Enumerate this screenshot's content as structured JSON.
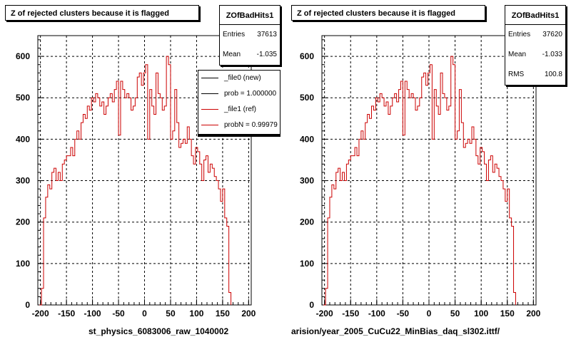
{
  "panels": [
    {
      "title": "Z of rejected clusters  because it is flagged",
      "stats": {
        "name": "ZOfBadHits1",
        "rows": [
          {
            "k": "Entries",
            "v": "37613"
          },
          {
            "k": "Mean",
            "v": "-1.035"
          }
        ]
      },
      "legend": [
        {
          "label": "_file0 (new)",
          "color": "#000000"
        },
        {
          "label": "prob = 1.000000",
          "color": "#000000"
        },
        {
          "label": "_file1 (ref)",
          "color": "#cc0000"
        },
        {
          "label": "probN = 0.99979",
          "color": "#cc0000"
        }
      ],
      "xtitle": "st_physics_6083006_raw_1040002"
    },
    {
      "title": "Z of rejected clusters  because it is flagged",
      "stats": {
        "name": "ZOfBadHits1",
        "rows": [
          {
            "k": "Entries",
            "v": "37620"
          },
          {
            "k": "Mean",
            "v": "-1.033"
          },
          {
            "k": "RMS",
            "v": "100.8"
          }
        ]
      },
      "xtitle": "arision/year_2005_CuCu22_MinBias_daq_sl302.ittf/"
    }
  ],
  "footer": "",
  "chart_data": [
    {
      "type": "histogram",
      "title": "Z of rejected clusters  because it is flagged",
      "xlabel": "st_physics_6083006_raw_1040002",
      "ylabel": "",
      "xlim": [
        -205,
        205
      ],
      "ylim": [
        0,
        650
      ],
      "xticks": [
        -200,
        -150,
        -100,
        -50,
        0,
        50,
        100,
        150,
        200
      ],
      "yticks": [
        0,
        100,
        200,
        300,
        400,
        500,
        600
      ],
      "grid": true,
      "legend_position": "top-right",
      "bin_width": 4,
      "x_start": -202,
      "series": [
        {
          "name": "_file1 (ref)",
          "color": "#cc0000",
          "values": [
            0,
            40,
            210,
            260,
            290,
            280,
            320,
            330,
            300,
            320,
            300,
            340,
            350,
            360,
            360,
            380,
            360,
            400,
            420,
            400,
            440,
            460,
            450,
            480,
            470,
            500,
            490,
            510,
            500,
            480,
            490,
            460,
            480,
            500,
            510,
            490,
            520,
            540,
            410,
            540,
            520,
            500,
            510,
            500,
            470,
            480,
            500,
            550,
            560,
            530,
            560,
            580,
            400,
            520,
            480,
            460,
            560,
            510,
            500,
            470,
            480,
            600,
            580,
            400,
            420,
            520,
            440,
            380,
            390,
            400,
            390,
            430,
            400,
            360,
            340,
            380,
            370,
            340,
            300,
            350,
            360,
            320,
            340,
            330,
            310,
            300,
            280,
            250,
            280,
            210,
            190,
            30
          ]
        }
      ]
    },
    {
      "type": "histogram",
      "title": "Z of rejected clusters  because it is flagged",
      "xlabel": "arision/year_2005_CuCu22_MinBias_daq_sl302.ittf/",
      "ylabel": "",
      "xlim": [
        -205,
        205
      ],
      "ylim": [
        0,
        650
      ],
      "xticks": [
        -200,
        -150,
        -100,
        -50,
        0,
        50,
        100,
        150,
        200
      ],
      "yticks": [
        0,
        100,
        200,
        300,
        400,
        500,
        600
      ],
      "grid": true,
      "bin_width": 4,
      "x_start": -202,
      "series": [
        {
          "name": "",
          "color": "#cc0000",
          "values": [
            0,
            40,
            210,
            260,
            290,
            280,
            320,
            330,
            300,
            320,
            300,
            340,
            350,
            360,
            360,
            380,
            360,
            400,
            420,
            400,
            440,
            460,
            450,
            480,
            470,
            500,
            490,
            510,
            500,
            480,
            490,
            460,
            480,
            500,
            510,
            490,
            520,
            540,
            410,
            540,
            520,
            500,
            510,
            500,
            470,
            480,
            500,
            550,
            560,
            530,
            560,
            580,
            400,
            520,
            480,
            460,
            560,
            510,
            500,
            470,
            480,
            600,
            580,
            400,
            420,
            520,
            440,
            380,
            390,
            400,
            390,
            430,
            400,
            360,
            340,
            380,
            370,
            340,
            300,
            350,
            360,
            320,
            340,
            330,
            310,
            300,
            280,
            250,
            280,
            210,
            190,
            30
          ]
        }
      ]
    }
  ]
}
